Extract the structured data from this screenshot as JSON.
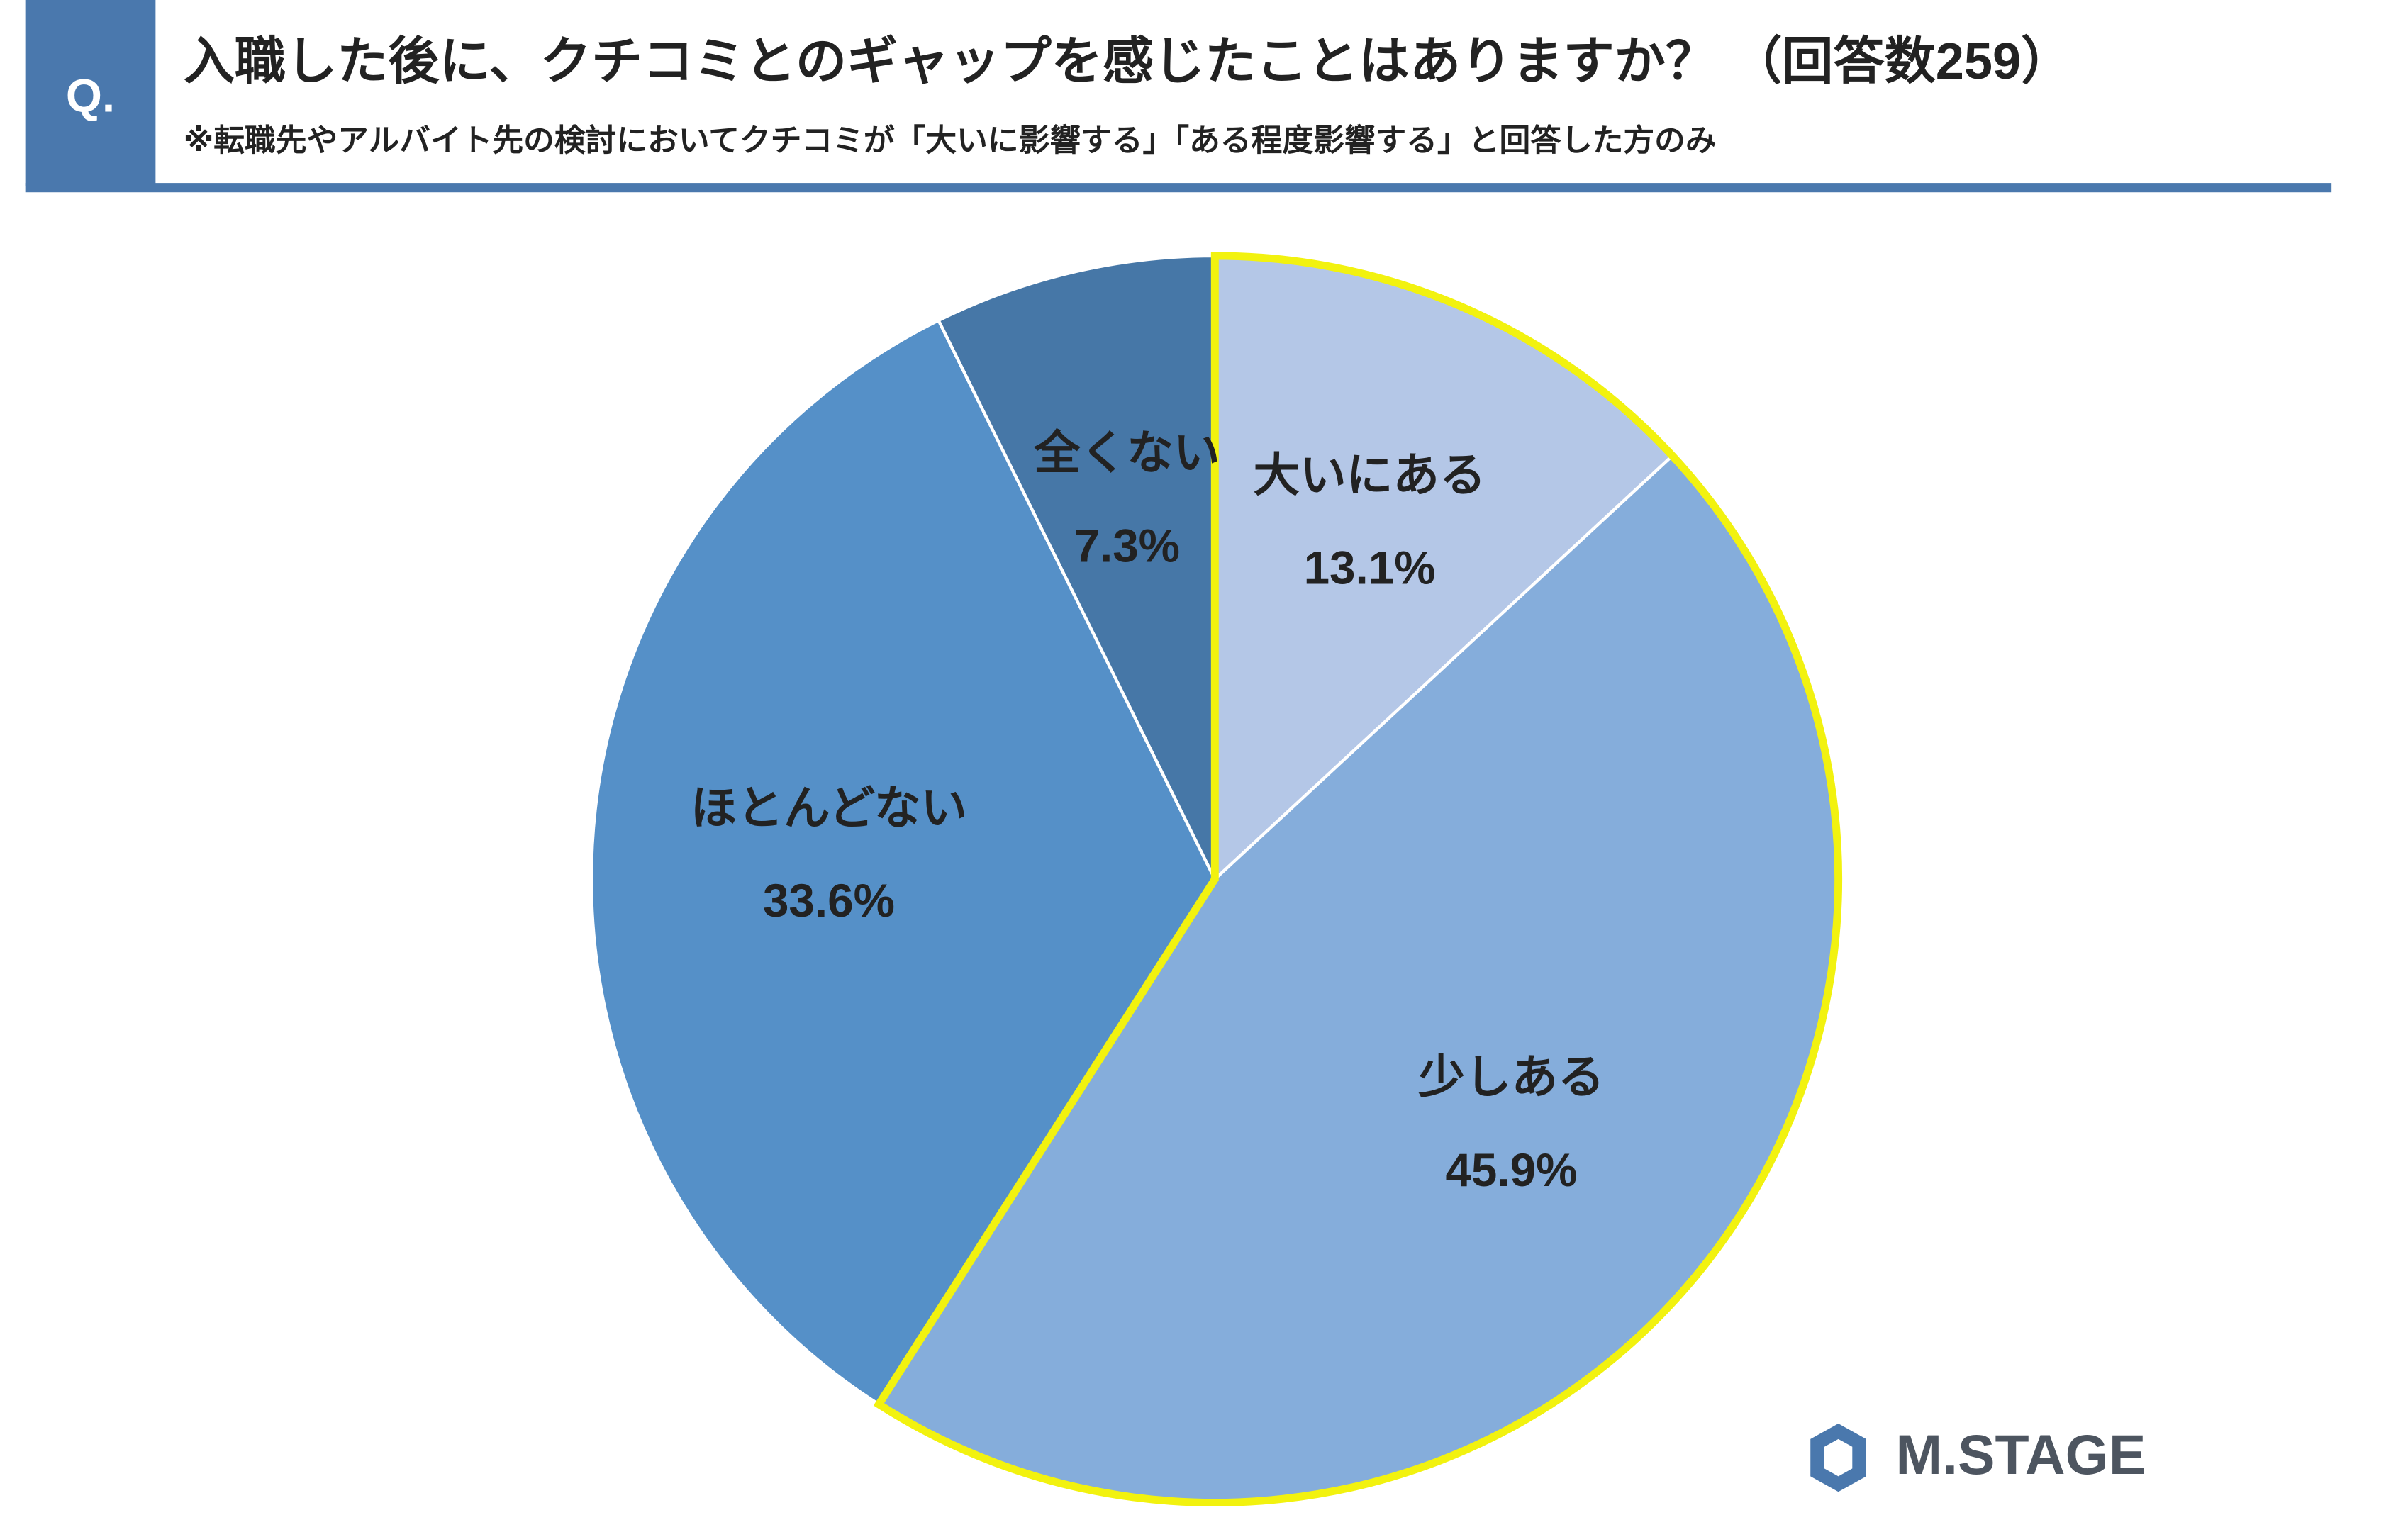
{
  "header": {
    "badge": "Q.",
    "title": "入職した後に、クチコミとのギャップを感じたことはありますか？ （回答数259）",
    "subtitle": "※転職先やアルバイト先の検討においてクチコミが「大いに影響する」「ある程度影響する」と回答した方のみ"
  },
  "chart_data": {
    "type": "pie",
    "categories": [
      "大いにある",
      "少しある",
      "ほとんどない",
      "全くない"
    ],
    "values": [
      13.1,
      45.9,
      33.6,
      7.3
    ],
    "value_labels": [
      "13.1%",
      "45.9%",
      "33.6%",
      "7.3%"
    ],
    "colors": [
      "#b4c7e7",
      "#85addb",
      "#5590c8",
      "#4677a7"
    ],
    "highlight": {
      "indices": [
        0,
        1
      ],
      "color": "#f2f20f"
    }
  },
  "logo": "M.STAGE"
}
